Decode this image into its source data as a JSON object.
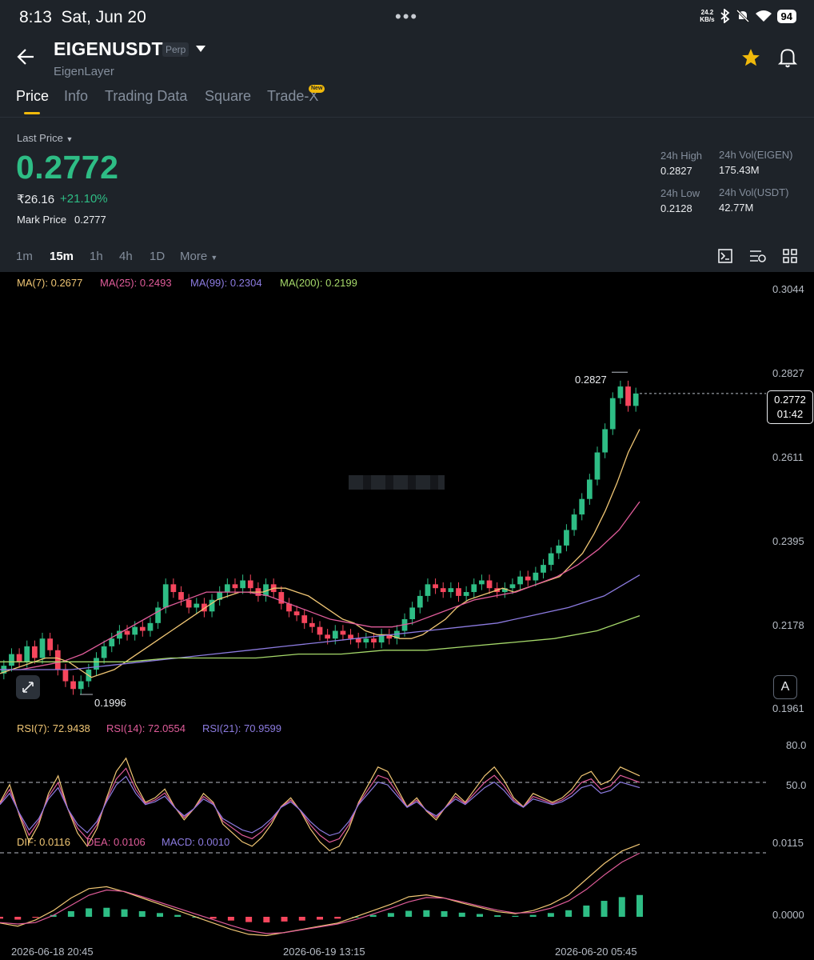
{
  "status": {
    "time": "8:13",
    "date": "Sat, Jun 20",
    "net_speed": "24.2",
    "net_unit": "KB/s",
    "battery": "94"
  },
  "header": {
    "symbol": "EIGENUSDT",
    "contract": "Perp",
    "name": "EigenLayer"
  },
  "tabs": [
    "Price",
    "Info",
    "Trading Data",
    "Square",
    "Trade-X"
  ],
  "new_badge": "New",
  "ticker": {
    "last_price_label": "Last Price",
    "last_price": "0.2772",
    "fiat": "₹26.16",
    "change": "+21.10%",
    "mark_price_label": "Mark Price",
    "mark_price": "0.2777",
    "high_label": "24h High",
    "high": "0.2827",
    "low_label": "24h Low",
    "low": "0.2128",
    "vol_base_label": "24h Vol(EIGEN)",
    "vol_base": "175.43M",
    "vol_quote_label": "24h Vol(USDT)",
    "vol_quote": "42.77M"
  },
  "intervals": [
    "1m",
    "15m",
    "1h",
    "4h",
    "1D",
    "More"
  ],
  "active_interval": "15m",
  "ma_legend": {
    "ma7": "MA(7): 0.2677",
    "ma25": "MA(25): 0.2493",
    "ma99": "MA(99): 0.2304",
    "ma200": "MA(200): 0.2199"
  },
  "price_axis": [
    "0.3044",
    "0.2827",
    "0.2611",
    "0.2395",
    "0.2178",
    "0.1961"
  ],
  "current_tag": {
    "price": "0.2772",
    "countdown": "01:42"
  },
  "high_marker": "0.2827",
  "low_marker": "0.1996",
  "auto_button": "A",
  "rsi_legend": {
    "rsi7": "RSI(7): 72.9438",
    "rsi14": "RSI(14): 72.0554",
    "rsi21": "RSI(21): 70.9599"
  },
  "rsi_axis": [
    "80.0",
    "50.0"
  ],
  "macd_legend": {
    "dif": "DIF: 0.0116",
    "dea": "DEA: 0.0106",
    "macd": "MACD: 0.0010"
  },
  "macd_axis": [
    "0.0115",
    "0.0000"
  ],
  "dates": [
    "2026-06-18 20:45",
    "2026-06-19 13:15",
    "2026-06-20 05:45"
  ],
  "colors": {
    "up": "#2ebd85",
    "down": "#f6465d",
    "ma7": "#f0c674",
    "ma25": "#e05c9a",
    "ma99": "#8c7be0",
    "ma200": "#a6d96a",
    "accent": "#f0b90b"
  },
  "chart_data": {
    "type": "candlestick",
    "ohlc_closes": [
      0.207,
      0.21,
      0.208,
      0.212,
      0.209,
      0.214,
      0.211,
      0.206,
      0.203,
      0.201,
      0.203,
      0.206,
      0.209,
      0.212,
      0.214,
      0.216,
      0.215,
      0.217,
      0.216,
      0.218,
      0.222,
      0.228,
      0.226,
      0.224,
      0.222,
      0.223,
      0.221,
      0.224,
      0.226,
      0.228,
      0.227,
      0.229,
      0.227,
      0.225,
      0.228,
      0.226,
      0.223,
      0.221,
      0.22,
      0.218,
      0.217,
      0.215,
      0.214,
      0.216,
      0.215,
      0.214,
      0.213,
      0.214,
      0.213,
      0.215,
      0.214,
      0.216,
      0.219,
      0.222,
      0.225,
      0.228,
      0.227,
      0.226,
      0.227,
      0.225,
      0.226,
      0.228,
      0.229,
      0.227,
      0.226,
      0.227,
      0.228,
      0.23,
      0.229,
      0.231,
      0.233,
      0.236,
      0.238,
      0.242,
      0.246,
      0.25,
      0.255,
      0.262,
      0.268,
      0.276,
      0.279,
      0.274,
      0.2772
    ],
    "ma7": [
      0.205,
      0.206,
      0.207,
      0.208,
      0.209,
      0.209,
      0.208,
      0.206,
      0.204,
      0.205,
      0.206,
      0.208,
      0.21,
      0.212,
      0.214,
      0.216,
      0.218,
      0.22,
      0.222,
      0.224,
      0.225,
      0.226,
      0.226,
      0.226,
      0.227,
      0.227,
      0.226,
      0.225,
      0.223,
      0.221,
      0.219,
      0.218,
      0.216,
      0.215,
      0.215,
      0.214,
      0.214,
      0.215,
      0.217,
      0.219,
      0.222,
      0.224,
      0.225,
      0.226,
      0.227,
      0.226,
      0.227,
      0.228,
      0.229,
      0.23,
      0.233,
      0.236,
      0.241,
      0.247,
      0.254,
      0.262,
      0.268
    ],
    "ma25": [
      0.206,
      0.206,
      0.207,
      0.208,
      0.21,
      0.213,
      0.216,
      0.219,
      0.222,
      0.224,
      0.226,
      0.226,
      0.226,
      0.225,
      0.223,
      0.221,
      0.219,
      0.218,
      0.217,
      0.217,
      0.218,
      0.22,
      0.222,
      0.224,
      0.225,
      0.226,
      0.228,
      0.23,
      0.233,
      0.237,
      0.242,
      0.2493
    ],
    "ma99": [
      0.206,
      0.206,
      0.206,
      0.207,
      0.208,
      0.209,
      0.21,
      0.211,
      0.212,
      0.213,
      0.214,
      0.215,
      0.216,
      0.217,
      0.218,
      0.22,
      0.222,
      0.225,
      0.2304
    ],
    "ma200": [
      0.208,
      0.208,
      0.208,
      0.208,
      0.209,
      0.209,
      0.209,
      0.21,
      0.21,
      0.211,
      0.211,
      0.212,
      0.213,
      0.214,
      0.216,
      0.2199
    ],
    "rsi_range": [
      0,
      100
    ]
  }
}
